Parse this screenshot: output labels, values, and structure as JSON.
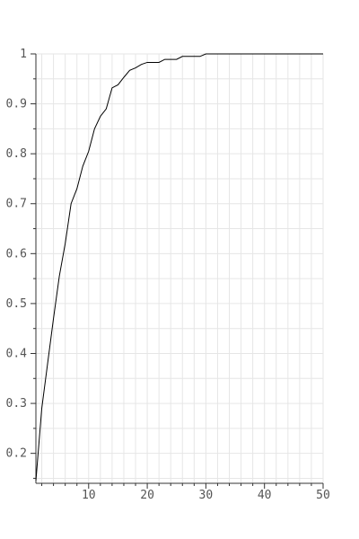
{
  "chart_data": {
    "type": "line",
    "title": "",
    "xlabel": "",
    "ylabel": "",
    "xlim": [
      1,
      50
    ],
    "ylim": [
      0.14,
      1.0
    ],
    "x_major_ticks": [
      10,
      20,
      30,
      40,
      50
    ],
    "x_minor_step": 2,
    "y_major_ticks": [
      0.2,
      0.3,
      0.4,
      0.5,
      0.6,
      0.7,
      0.8,
      0.9,
      1
    ],
    "y_minor_step": 0.05,
    "grid": true,
    "legend": "none",
    "colors": {
      "line": "#000000",
      "grid": "#e6e6e6",
      "axis": "#333333",
      "label": "#555555"
    },
    "series": [
      {
        "x": [
          1,
          2,
          3,
          4,
          5,
          6,
          7,
          8,
          9,
          10,
          11,
          12,
          13,
          14,
          15,
          16,
          17,
          18,
          19,
          20,
          21,
          22,
          23,
          24,
          25,
          26,
          27,
          28,
          29,
          30,
          35,
          40,
          45,
          50
        ],
        "values": [
          0.145,
          0.29,
          0.38,
          0.47,
          0.555,
          0.62,
          0.7,
          0.73,
          0.775,
          0.805,
          0.85,
          0.875,
          0.89,
          0.932,
          0.938,
          0.953,
          0.967,
          0.972,
          0.979,
          0.983,
          0.983,
          0.983,
          0.989,
          0.989,
          0.989,
          0.995,
          0.995,
          0.995,
          0.995,
          1.0,
          1.0,
          1.0,
          1.0,
          1.0
        ]
      }
    ]
  }
}
